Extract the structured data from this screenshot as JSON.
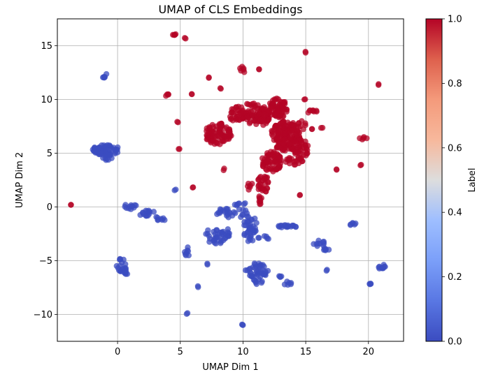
{
  "chart_data": {
    "type": "scatter",
    "title": "UMAP of CLS Embeddings",
    "xlabel": "UMAP Dim 1",
    "ylabel": "UMAP Dim 2",
    "xlim": [
      -4.8,
      22.8
    ],
    "ylim": [
      -12.5,
      17.5
    ],
    "xticks": [
      0,
      5,
      10,
      15,
      20
    ],
    "yticks": [
      -10,
      -5,
      0,
      5,
      10,
      15
    ],
    "grid": true,
    "colormap": "coolwarm",
    "colorbar": {
      "label": "Label",
      "range": [
        0.0,
        1.0
      ],
      "ticks": [
        "0.0",
        "0.2",
        "0.4",
        "0.6",
        "0.8",
        "1.0"
      ],
      "low_color": "#3b4cc0",
      "mid_color": "#dddddd",
      "high_color": "#b40426"
    },
    "colors": {
      "label_0": "#3b4cc0",
      "label_1": "#b40426"
    },
    "series": [
      {
        "label_value": 0,
        "clusters": [
          {
            "cx": -1.0,
            "cy": 12.2,
            "rx": 0.25,
            "ry": 0.2,
            "n": 6
          },
          {
            "cx": -0.9,
            "cy": 5.3,
            "rx": 1.1,
            "ry": 0.5,
            "n": 60
          },
          {
            "cx": -0.8,
            "cy": 4.6,
            "rx": 0.4,
            "ry": 0.4,
            "n": 10
          },
          {
            "cx": 1.0,
            "cy": 0.0,
            "rx": 0.6,
            "ry": 0.25,
            "n": 12
          },
          {
            "cx": 2.5,
            "cy": -0.6,
            "rx": 0.8,
            "ry": 0.3,
            "n": 14
          },
          {
            "cx": 3.4,
            "cy": -1.1,
            "rx": 0.4,
            "ry": 0.3,
            "n": 8
          },
          {
            "cx": 0.3,
            "cy": -5.4,
            "rx": 0.4,
            "ry": 0.6,
            "n": 14
          },
          {
            "cx": 0.6,
            "cy": -6.0,
            "rx": 0.4,
            "ry": 0.3,
            "n": 10
          },
          {
            "cx": 4.6,
            "cy": 1.6,
            "rx": 0.08,
            "ry": 0.08,
            "n": 2
          },
          {
            "cx": 5.6,
            "cy": -4.2,
            "rx": 0.3,
            "ry": 0.5,
            "n": 8
          },
          {
            "cx": 5.5,
            "cy": -9.9,
            "rx": 0.08,
            "ry": 0.08,
            "n": 2
          },
          {
            "cx": 6.4,
            "cy": -7.4,
            "rx": 0.08,
            "ry": 0.08,
            "n": 2
          },
          {
            "cx": 7.2,
            "cy": -5.3,
            "rx": 0.08,
            "ry": 0.08,
            "n": 2
          },
          {
            "cx": 8.0,
            "cy": -2.6,
            "rx": 1.0,
            "ry": 0.9,
            "n": 40
          },
          {
            "cx": 8.6,
            "cy": -0.6,
            "rx": 0.7,
            "ry": 0.5,
            "n": 18
          },
          {
            "cx": 9.8,
            "cy": -0.2,
            "rx": 0.6,
            "ry": 0.8,
            "n": 16
          },
          {
            "cx": 10.6,
            "cy": -2.0,
            "rx": 0.6,
            "ry": 1.3,
            "n": 40
          },
          {
            "cx": 11.1,
            "cy": -5.9,
            "rx": 0.9,
            "ry": 0.7,
            "n": 40
          },
          {
            "cx": 11.2,
            "cy": -6.9,
            "rx": 0.4,
            "ry": 0.3,
            "n": 8
          },
          {
            "cx": 13.4,
            "cy": -1.8,
            "rx": 1.0,
            "ry": 0.12,
            "n": 18
          },
          {
            "cx": 11.7,
            "cy": -2.8,
            "rx": 0.5,
            "ry": 0.3,
            "n": 6
          },
          {
            "cx": 13.0,
            "cy": -6.3,
            "rx": 0.4,
            "ry": 0.3,
            "n": 4
          },
          {
            "cx": 13.5,
            "cy": -7.0,
            "rx": 0.4,
            "ry": 0.4,
            "n": 6
          },
          {
            "cx": 16.1,
            "cy": -3.4,
            "rx": 0.5,
            "ry": 0.3,
            "n": 10
          },
          {
            "cx": 16.7,
            "cy": -4.0,
            "rx": 0.3,
            "ry": 0.3,
            "n": 6
          },
          {
            "cx": 16.7,
            "cy": -5.9,
            "rx": 0.08,
            "ry": 0.08,
            "n": 2
          },
          {
            "cx": 18.8,
            "cy": -1.6,
            "rx": 0.3,
            "ry": 0.15,
            "n": 6
          },
          {
            "cx": 20.0,
            "cy": -7.2,
            "rx": 0.2,
            "ry": 0.2,
            "n": 4
          },
          {
            "cx": 21.1,
            "cy": -5.6,
            "rx": 0.3,
            "ry": 0.3,
            "n": 10
          },
          {
            "cx": 10.0,
            "cy": -10.9,
            "rx": 0.1,
            "ry": 0.1,
            "n": 3
          }
        ]
      },
      {
        "label_value": 1,
        "clusters": [
          {
            "cx": -3.7,
            "cy": 0.2,
            "rx": 0.06,
            "ry": 0.06,
            "n": 2
          },
          {
            "cx": 4.5,
            "cy": 16.0,
            "rx": 0.2,
            "ry": 0.2,
            "n": 5
          },
          {
            "cx": 5.4,
            "cy": 15.7,
            "rx": 0.06,
            "ry": 0.06,
            "n": 2
          },
          {
            "cx": 3.9,
            "cy": 10.4,
            "rx": 0.2,
            "ry": 0.15,
            "n": 4
          },
          {
            "cx": 5.9,
            "cy": 10.5,
            "rx": 0.06,
            "ry": 0.06,
            "n": 2
          },
          {
            "cx": 7.3,
            "cy": 12.0,
            "rx": 0.06,
            "ry": 0.06,
            "n": 2
          },
          {
            "cx": 4.8,
            "cy": 7.9,
            "rx": 0.06,
            "ry": 0.06,
            "n": 2
          },
          {
            "cx": 4.9,
            "cy": 5.4,
            "rx": 0.06,
            "ry": 0.06,
            "n": 2
          },
          {
            "cx": 6.0,
            "cy": 1.8,
            "rx": 0.06,
            "ry": 0.06,
            "n": 2
          },
          {
            "cx": 8.5,
            "cy": 3.5,
            "rx": 0.1,
            "ry": 0.1,
            "n": 2
          },
          {
            "cx": 8.2,
            "cy": 11.0,
            "rx": 0.06,
            "ry": 0.06,
            "n": 2
          },
          {
            "cx": 8.0,
            "cy": 6.8,
            "rx": 1.1,
            "ry": 1.0,
            "n": 90
          },
          {
            "cx": 9.6,
            "cy": 8.6,
            "rx": 0.7,
            "ry": 0.8,
            "n": 40
          },
          {
            "cx": 10.0,
            "cy": 12.8,
            "rx": 0.3,
            "ry": 0.3,
            "n": 6
          },
          {
            "cx": 11.3,
            "cy": 12.8,
            "rx": 0.06,
            "ry": 0.06,
            "n": 2
          },
          {
            "cx": 11.2,
            "cy": 8.5,
            "rx": 1.0,
            "ry": 1.0,
            "n": 80
          },
          {
            "cx": 12.8,
            "cy": 9.2,
            "rx": 0.8,
            "ry": 0.9,
            "n": 70
          },
          {
            "cx": 13.4,
            "cy": 6.6,
            "rx": 1.2,
            "ry": 1.4,
            "n": 160
          },
          {
            "cx": 14.6,
            "cy": 5.4,
            "rx": 0.6,
            "ry": 1.0,
            "n": 40
          },
          {
            "cx": 12.3,
            "cy": 4.2,
            "rx": 0.8,
            "ry": 1.0,
            "n": 70
          },
          {
            "cx": 11.6,
            "cy": 2.2,
            "rx": 0.5,
            "ry": 0.9,
            "n": 30
          },
          {
            "cx": 11.3,
            "cy": 0.6,
            "rx": 0.3,
            "ry": 0.5,
            "n": 10
          },
          {
            "cx": 14.1,
            "cy": 4.3,
            "rx": 0.7,
            "ry": 0.4,
            "n": 20
          },
          {
            "cx": 15.6,
            "cy": 8.8,
            "rx": 0.4,
            "ry": 0.3,
            "n": 8
          },
          {
            "cx": 14.9,
            "cy": 10.0,
            "rx": 0.1,
            "ry": 0.1,
            "n": 2
          },
          {
            "cx": 14.7,
            "cy": 7.6,
            "rx": 0.4,
            "ry": 0.4,
            "n": 8
          },
          {
            "cx": 16.3,
            "cy": 7.3,
            "rx": 0.1,
            "ry": 0.1,
            "n": 2
          },
          {
            "cx": 15.5,
            "cy": 7.3,
            "rx": 0.06,
            "ry": 0.06,
            "n": 2
          },
          {
            "cx": 15.0,
            "cy": 14.4,
            "rx": 0.06,
            "ry": 0.06,
            "n": 2
          },
          {
            "cx": 14.5,
            "cy": 1.1,
            "rx": 0.06,
            "ry": 0.06,
            "n": 2
          },
          {
            "cx": 17.5,
            "cy": 3.5,
            "rx": 0.06,
            "ry": 0.06,
            "n": 2
          },
          {
            "cx": 19.6,
            "cy": 6.4,
            "rx": 0.3,
            "ry": 0.15,
            "n": 5
          },
          {
            "cx": 19.4,
            "cy": 3.9,
            "rx": 0.06,
            "ry": 0.06,
            "n": 2
          },
          {
            "cx": 20.8,
            "cy": 11.4,
            "rx": 0.06,
            "ry": 0.06,
            "n": 2
          },
          {
            "cx": 10.6,
            "cy": 9.5,
            "rx": 0.3,
            "ry": 0.3,
            "n": 6
          },
          {
            "cx": 10.5,
            "cy": 2.0,
            "rx": 0.3,
            "ry": 0.4,
            "n": 6
          }
        ]
      }
    ]
  }
}
